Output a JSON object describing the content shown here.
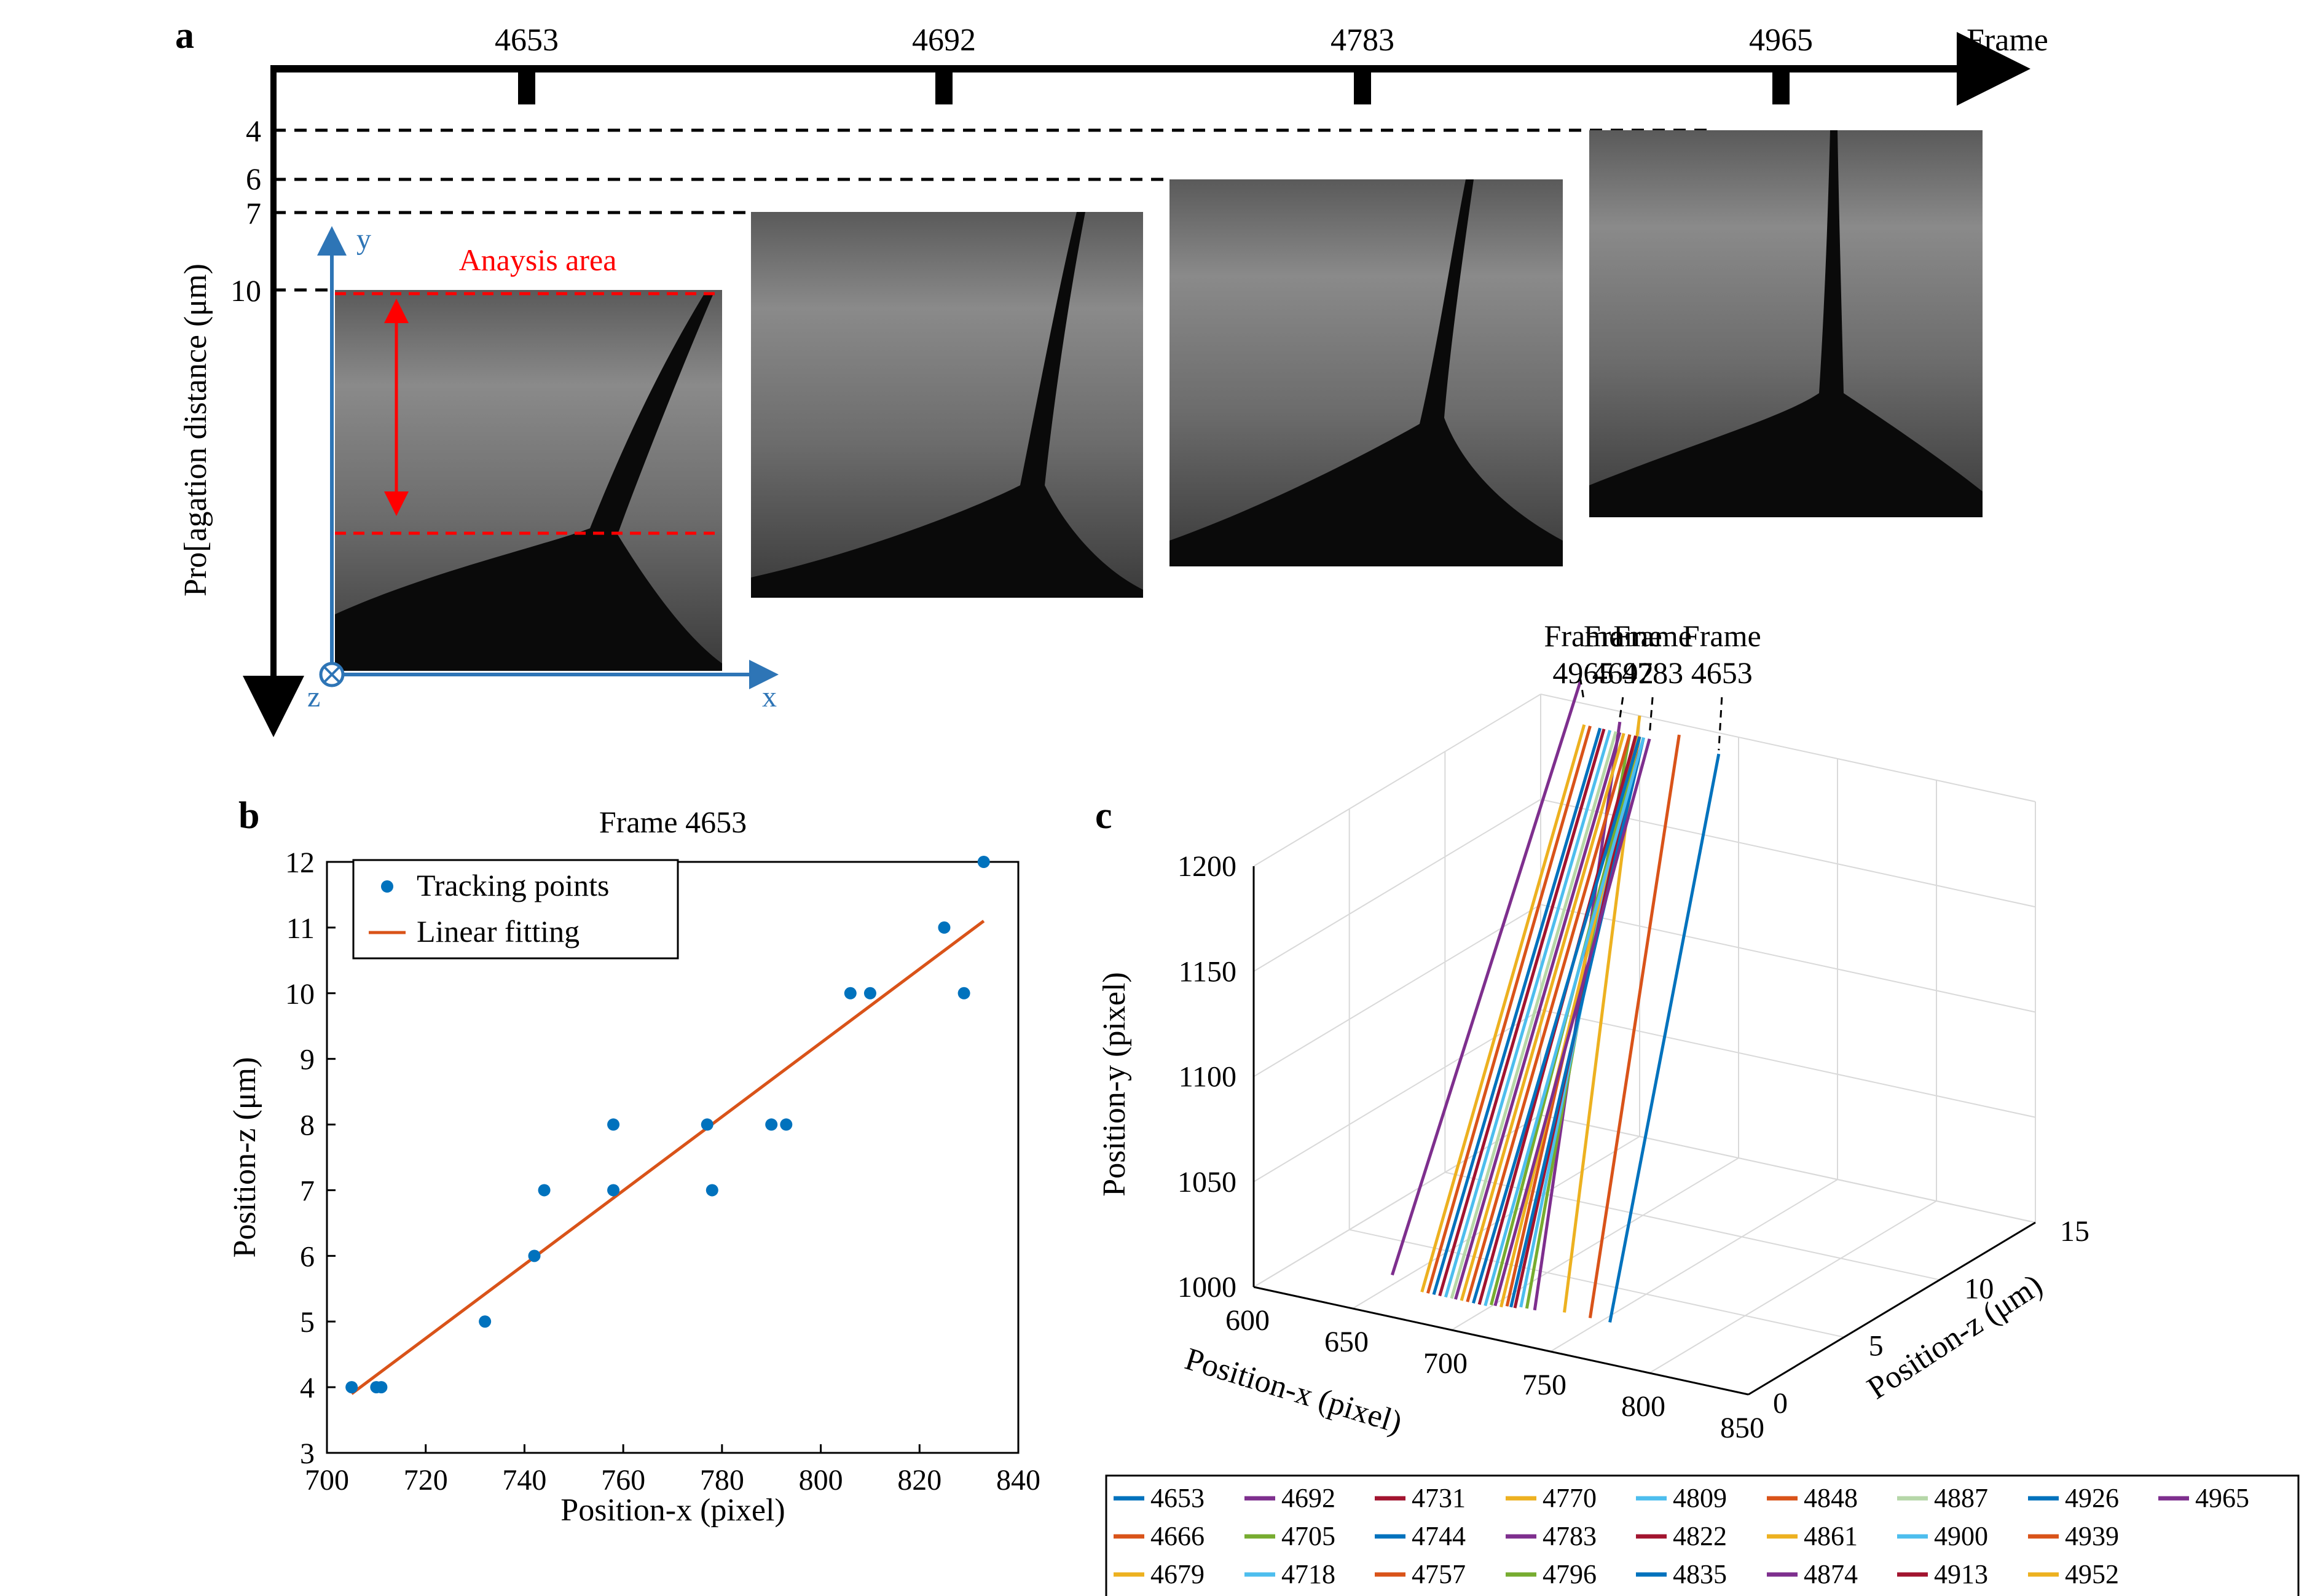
{
  "panels": {
    "a": "a",
    "b": "b",
    "c": "c"
  },
  "panel_a": {
    "frame_axis_label": "Frame",
    "frames": [
      "4653",
      "4692",
      "4783",
      "4965"
    ],
    "ylabel": "Pro[agation distance (μm)",
    "depth_ticks": [
      "4",
      "6",
      "7",
      "10"
    ],
    "analysis_label": "Anaysis area",
    "axis_x": "x",
    "axis_y": "y",
    "axis_z": "z",
    "colors": {
      "axis_blue": "#2E75B6",
      "analysis_red": "#FF0000"
    }
  },
  "chart_data": [
    {
      "type": "scatter",
      "title": "Frame 4653",
      "xlabel": "Position-x (pixel)",
      "ylabel": "Position-z (μm)",
      "xlim": [
        700,
        840
      ],
      "ylim": [
        3,
        12
      ],
      "xticks": [
        "700",
        "720",
        "740",
        "760",
        "780",
        "800",
        "820",
        "840"
      ],
      "yticks": [
        "3",
        "4",
        "5",
        "6",
        "7",
        "8",
        "9",
        "10",
        "11",
        "12"
      ],
      "legend": [
        "Tracking points",
        "Linear fitting"
      ],
      "legend_position": "top-left",
      "series": [
        {
          "name": "Tracking points",
          "color": "#0072BD",
          "points": [
            [
              705,
              4
            ],
            [
              710,
              4
            ],
            [
              711,
              4
            ],
            [
              732,
              5
            ],
            [
              742,
              6
            ],
            [
              744,
              7
            ],
            [
              758,
              7
            ],
            [
              758,
              8
            ],
            [
              777,
              8
            ],
            [
              778,
              7
            ],
            [
              790,
              8
            ],
            [
              793,
              8
            ],
            [
              806,
              10
            ],
            [
              810,
              10
            ],
            [
              825,
              11
            ],
            [
              829,
              10
            ],
            [
              833,
              12
            ]
          ]
        },
        {
          "name": "Linear fitting",
          "color": "#D95319",
          "points": [
            [
              705,
              3.9
            ],
            [
              833,
              11.1
            ]
          ]
        }
      ]
    },
    {
      "type": "line",
      "subtype": "3d",
      "xlabel": "Position-x (pixel)",
      "ylabel": "Position-y (pixel)",
      "zlabel": "Position-z (μm)",
      "xlim": [
        600,
        850
      ],
      "ylim": [
        1000,
        1200
      ],
      "zlim": [
        0,
        15
      ],
      "xticks": [
        "600",
        "650",
        "700",
        "750",
        "800",
        "850"
      ],
      "yticks": [
        "1000",
        "1050",
        "1100",
        "1150",
        "1200"
      ],
      "zticks": [
        "0",
        "5",
        "10",
        "15"
      ],
      "annotations": [
        {
          "label": "Frame",
          "frame": "4965"
        },
        {
          "label": "Frame",
          "frame": "4783"
        },
        {
          "label": "Frame",
          "frame": "4692"
        },
        {
          "label": "Frame",
          "frame": "4653"
        }
      ],
      "legend": [
        {
          "name": "4653",
          "color": "#0072BD"
        },
        {
          "name": "4692",
          "color": "#7E2F8E"
        },
        {
          "name": "4731",
          "color": "#A2142F"
        },
        {
          "name": "4770",
          "color": "#EDB120"
        },
        {
          "name": "4809",
          "color": "#4DBEEE"
        },
        {
          "name": "4848",
          "color": "#D95319"
        },
        {
          "name": "4887",
          "color": "#B6D7A8"
        },
        {
          "name": "4926",
          "color": "#0072BD"
        },
        {
          "name": "4965",
          "color": "#7E2F8E"
        },
        {
          "name": "4666",
          "color": "#D95319"
        },
        {
          "name": "4705",
          "color": "#77AC30"
        },
        {
          "name": "4744",
          "color": "#0072BD"
        },
        {
          "name": "4783",
          "color": "#7E2F8E"
        },
        {
          "name": "4822",
          "color": "#A2142F"
        },
        {
          "name": "4861",
          "color": "#EDB120"
        },
        {
          "name": "4900",
          "color": "#4DBEEE"
        },
        {
          "name": "4939",
          "color": "#D95319"
        },
        {
          "name": "4679",
          "color": "#EDB120"
        },
        {
          "name": "4718",
          "color": "#4DBEEE"
        },
        {
          "name": "4757",
          "color": "#D95319"
        },
        {
          "name": "4796",
          "color": "#77AC30"
        },
        {
          "name": "4835",
          "color": "#0072BD"
        },
        {
          "name": "4874",
          "color": "#7E2F8E"
        },
        {
          "name": "4913",
          "color": "#A2142F"
        },
        {
          "name": "4952",
          "color": "#EDB120"
        }
      ],
      "lines": [
        {
          "frame": "4653",
          "color": "#0072BD",
          "x0": 780,
          "y0": 1020,
          "x1": 690,
          "y1": 1190
        },
        {
          "frame": "4666",
          "color": "#D95319",
          "x0": 770,
          "y0": 1020,
          "x1": 670,
          "y1": 1195
        },
        {
          "frame": "4679",
          "color": "#EDB120",
          "x0": 757,
          "y0": 1020,
          "x1": 650,
          "y1": 1200
        },
        {
          "frame": "4692",
          "color": "#7E2F8E",
          "x0": 742,
          "y0": 1018,
          "x1": 640,
          "y1": 1195
        },
        {
          "frame": "4705",
          "color": "#77AC30",
          "x0": 738,
          "y0": 1018,
          "x1": 645,
          "y1": 1190
        },
        {
          "frame": "4718",
          "color": "#4DBEEE",
          "x0": 735,
          "y0": 1018,
          "x1": 648,
          "y1": 1190
        },
        {
          "frame": "4731",
          "color": "#A2142F",
          "x0": 732,
          "y0": 1017,
          "x1": 650,
          "y1": 1190
        },
        {
          "frame": "4744",
          "color": "#0072BD",
          "x0": 730,
          "y0": 1017,
          "x1": 652,
          "y1": 1190
        },
        {
          "frame": "4757",
          "color": "#D95319",
          "x0": 728,
          "y0": 1017,
          "x1": 648,
          "y1": 1190
        },
        {
          "frame": "4770",
          "color": "#EDB120",
          "x0": 725,
          "y0": 1016,
          "x1": 650,
          "y1": 1190
        },
        {
          "frame": "4783",
          "color": "#7E2F8E",
          "x0": 722,
          "y0": 1016,
          "x1": 655,
          "y1": 1190
        },
        {
          "frame": "4796",
          "color": "#77AC30",
          "x0": 720,
          "y0": 1016,
          "x1": 650,
          "y1": 1190
        },
        {
          "frame": "4809",
          "color": "#4DBEEE",
          "x0": 717,
          "y0": 1015,
          "x1": 652,
          "y1": 1190
        },
        {
          "frame": "4822",
          "color": "#A2142F",
          "x0": 714,
          "y0": 1015,
          "x1": 648,
          "y1": 1190
        },
        {
          "frame": "4835",
          "color": "#0072BD",
          "x0": 711,
          "y0": 1015,
          "x1": 650,
          "y1": 1190
        },
        {
          "frame": "4848",
          "color": "#D95319",
          "x0": 708,
          "y0": 1015,
          "x1": 645,
          "y1": 1190
        },
        {
          "frame": "4861",
          "color": "#EDB120",
          "x0": 705,
          "y0": 1015,
          "x1": 642,
          "y1": 1190
        },
        {
          "frame": "4874",
          "color": "#7E2F8E",
          "x0": 702,
          "y0": 1015,
          "x1": 640,
          "y1": 1190
        },
        {
          "frame": "4887",
          "color": "#B6D7A8",
          "x0": 700,
          "y0": 1015,
          "x1": 638,
          "y1": 1190
        },
        {
          "frame": "4900",
          "color": "#4DBEEE",
          "x0": 697,
          "y0": 1015,
          "x1": 635,
          "y1": 1190
        },
        {
          "frame": "4913",
          "color": "#A2142F",
          "x0": 694,
          "y0": 1015,
          "x1": 632,
          "y1": 1190
        },
        {
          "frame": "4926",
          "color": "#0072BD",
          "x0": 691,
          "y0": 1015,
          "x1": 630,
          "y1": 1190
        },
        {
          "frame": "4939",
          "color": "#D95319",
          "x0": 688,
          "y0": 1015,
          "x1": 625,
          "y1": 1190
        },
        {
          "frame": "4952",
          "color": "#EDB120",
          "x0": 685,
          "y0": 1015,
          "x1": 622,
          "y1": 1190
        },
        {
          "frame": "4965",
          "color": "#7E2F8E",
          "x0": 670,
          "y0": 1020,
          "x1": 620,
          "y1": 1210
        }
      ]
    }
  ]
}
